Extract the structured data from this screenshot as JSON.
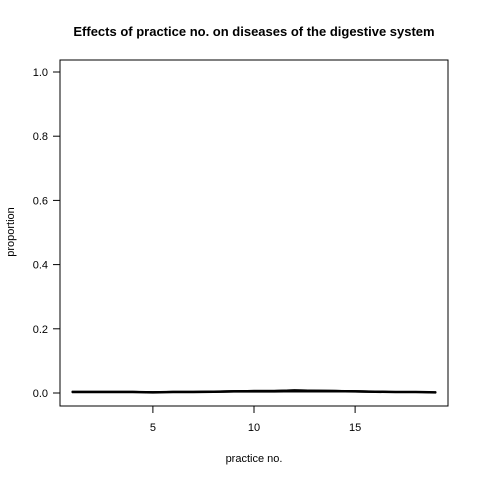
{
  "chart_data": {
    "type": "line",
    "title": "Effects of practice no. on diseases of the digestive system",
    "xlabel": "practice no.",
    "ylabel": "proportion",
    "xlim": [
      1,
      19
    ],
    "ylim": [
      0,
      1
    ],
    "x_ticks": [
      5,
      10,
      15
    ],
    "y_ticks": [
      0.0,
      0.2,
      0.4,
      0.6,
      0.8,
      1.0
    ],
    "x_tick_labels": [
      "5",
      "10",
      "15"
    ],
    "y_tick_labels": [
      "0.0",
      "0.2",
      "0.4",
      "0.6",
      "0.8",
      "1.0"
    ],
    "grid": false,
    "legend": "none",
    "line_color": "#000000",
    "band_fill": "#ffffff",
    "x": [
      1,
      2,
      3,
      4,
      5,
      6,
      7,
      8,
      9,
      10,
      11,
      12,
      13,
      14,
      15,
      16,
      17,
      18,
      19
    ],
    "series": [
      {
        "values": [
          0.003,
          0.003,
          0.003,
          0.003,
          0.002,
          0.003,
          0.003,
          0.004,
          0.005,
          0.005,
          0.005,
          0.006,
          0.006,
          0.006,
          0.005,
          0.004,
          0.003,
          0.003,
          0.002
        ]
      },
      {
        "values": [
          0.005,
          0.005,
          0.005,
          0.005,
          0.004,
          0.005,
          0.005,
          0.006,
          0.007,
          0.008,
          0.008,
          0.01,
          0.009,
          0.008,
          0.007,
          0.006,
          0.004,
          0.004,
          0.003
        ]
      },
      {
        "values": [
          0.002,
          0.002,
          0.002,
          0.002,
          0.001,
          0.002,
          0.002,
          0.002,
          0.003,
          0.003,
          0.003,
          0.003,
          0.003,
          0.003,
          0.003,
          0.002,
          0.002,
          0.002,
          0.001
        ]
      }
    ]
  }
}
